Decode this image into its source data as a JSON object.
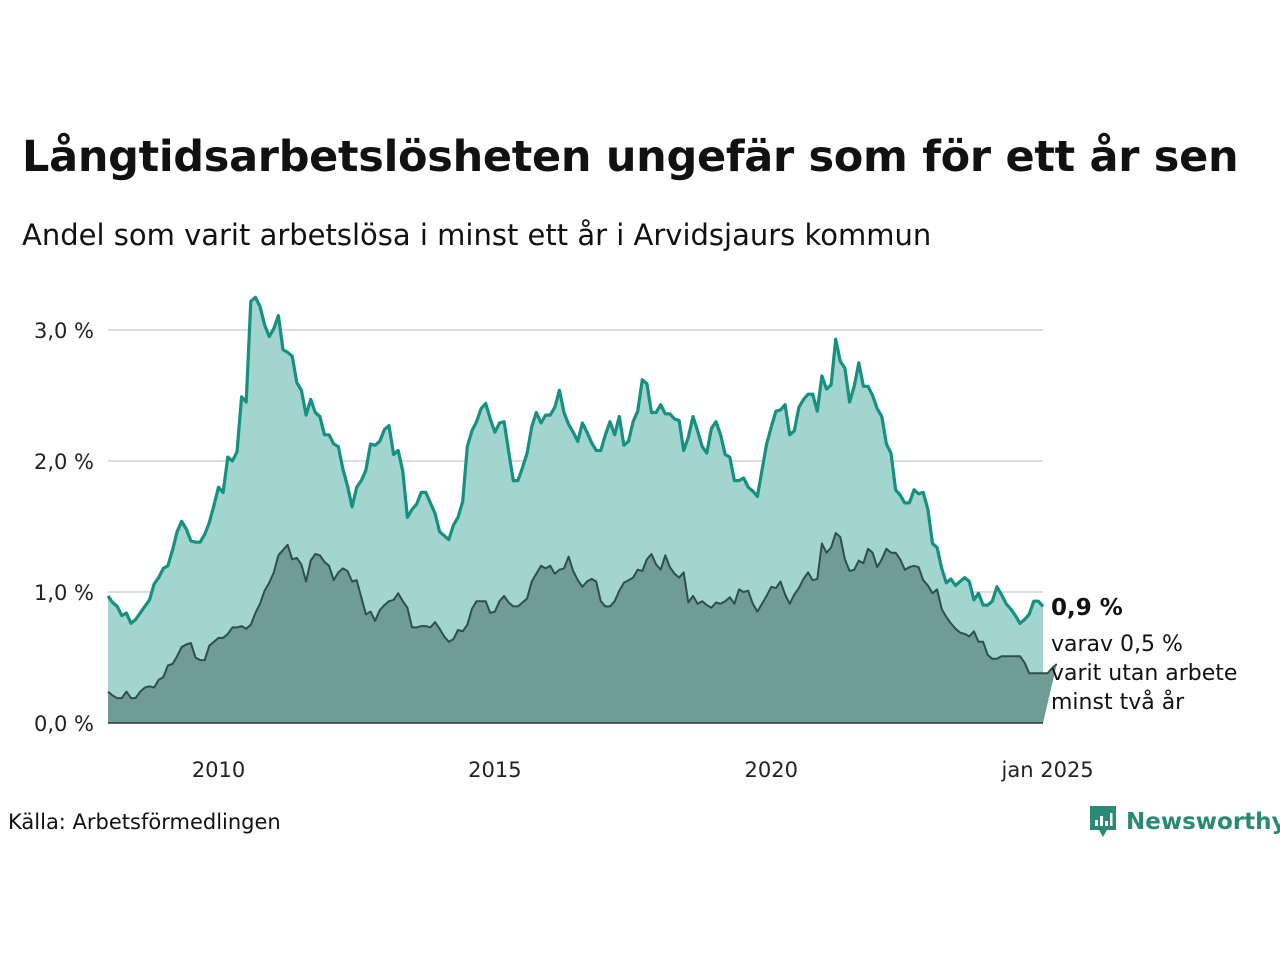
{
  "title": "Långtidsarbetslösheten ungefär som för ett år sen",
  "subtitle": "Andel som varit arbetslösa i minst ett år i Arvidsjaurs kommun",
  "source": "Källa: Arbetsförmedlingen",
  "brand": {
    "name": "Newsworthy",
    "icon": "newsworthy-logo-icon",
    "color": "#2a8a76"
  },
  "colors": {
    "long_line": "#16907f",
    "long_fill": "#a2d5cf",
    "vlong_line": "#2f4f49",
    "vlong_fill": "#6f9c96",
    "grid": "#dddddd"
  },
  "annotations": {
    "end_value": "0,9 %",
    "end_note_lines": [
      "varav 0,5 %",
      "varit utan arbete",
      "minst två år"
    ]
  },
  "chart_data": {
    "type": "area",
    "x_start": "2008-01",
    "x_frequency": "monthly",
    "x_ticks": [
      {
        "date": "2010-01",
        "label": "2010"
      },
      {
        "date": "2015-01",
        "label": "2015"
      },
      {
        "date": "2020-01",
        "label": "2020"
      },
      {
        "date": "2025-01",
        "label": "jan 2025"
      }
    ],
    "y_ticks": [
      {
        "value": 0,
        "label": "0,0 %"
      },
      {
        "value": 1,
        "label": "1,0 %"
      },
      {
        "value": 2,
        "label": "2,0 %"
      },
      {
        "value": 3,
        "label": "3,0 %"
      }
    ],
    "ylim": [
      0,
      3.3
    ],
    "grid": true,
    "series": [
      {
        "key": "long",
        "values": [
          0.97,
          0.92,
          0.89,
          0.82,
          0.84,
          0.76,
          0.79,
          0.84,
          0.89,
          0.94,
          1.06,
          1.11,
          1.18,
          1.2,
          1.32,
          1.46,
          1.54,
          1.48,
          1.39,
          1.38,
          1.38,
          1.44,
          1.53,
          1.66,
          1.8,
          1.76,
          2.03,
          2.0,
          2.07,
          2.49,
          2.45,
          3.22,
          3.25,
          3.18,
          3.04,
          2.95,
          3.01,
          3.11,
          2.85,
          2.83,
          2.8,
          2.6,
          2.54,
          2.35,
          2.47,
          2.37,
          2.34,
          2.2,
          2.2,
          2.13,
          2.11,
          1.94,
          1.81,
          1.65,
          1.8,
          1.85,
          1.93,
          2.13,
          2.12,
          2.15,
          2.24,
          2.27,
          2.05,
          2.08,
          1.92,
          1.57,
          1.63,
          1.67,
          1.76,
          1.76,
          1.68,
          1.6,
          1.46,
          1.43,
          1.4,
          1.51,
          1.57,
          1.69,
          2.11,
          2.23,
          2.3,
          2.4,
          2.44,
          2.32,
          2.22,
          2.29,
          2.3,
          2.07,
          1.85,
          1.85,
          1.95,
          2.06,
          2.26,
          2.37,
          2.29,
          2.35,
          2.35,
          2.41,
          2.54,
          2.37,
          2.28,
          2.22,
          2.15,
          2.29,
          2.22,
          2.14,
          2.08,
          2.08,
          2.2,
          2.3,
          2.2,
          2.34,
          2.12,
          2.15,
          2.3,
          2.38,
          2.62,
          2.59,
          2.37,
          2.37,
          2.43,
          2.36,
          2.36,
          2.32,
          2.31,
          2.08,
          2.18,
          2.34,
          2.23,
          2.11,
          2.06,
          2.25,
          2.3,
          2.2,
          2.05,
          2.03,
          1.85,
          1.85,
          1.87,
          1.8,
          1.77,
          1.73,
          1.93,
          2.13,
          2.26,
          2.38,
          2.39,
          2.43,
          2.2,
          2.23,
          2.41,
          2.47,
          2.51,
          2.51,
          2.38,
          2.65,
          2.55,
          2.58,
          2.93,
          2.76,
          2.71,
          2.45,
          2.57,
          2.75,
          2.57,
          2.57,
          2.5,
          2.4,
          2.34,
          2.13,
          2.06,
          1.78,
          1.74,
          1.68,
          1.68,
          1.78,
          1.75,
          1.76,
          1.63,
          1.37,
          1.34,
          1.18,
          1.07,
          1.1,
          1.05,
          1.08,
          1.11,
          1.08,
          0.94,
          0.99,
          0.9,
          0.9,
          0.93,
          1.04,
          0.98,
          0.91,
          0.87,
          0.82,
          0.76,
          0.79,
          0.83,
          0.93,
          0.93,
          0.89
        ]
      },
      {
        "key": "very_long",
        "values": [
          0.24,
          0.21,
          0.19,
          0.19,
          0.24,
          0.19,
          0.19,
          0.24,
          0.27,
          0.28,
          0.27,
          0.33,
          0.35,
          0.44,
          0.45,
          0.51,
          0.58,
          0.6,
          0.61,
          0.5,
          0.48,
          0.48,
          0.59,
          0.62,
          0.65,
          0.65,
          0.68,
          0.73,
          0.73,
          0.74,
          0.72,
          0.75,
          0.84,
          0.91,
          1.01,
          1.07,
          1.15,
          1.28,
          1.32,
          1.36,
          1.25,
          1.26,
          1.21,
          1.08,
          1.24,
          1.29,
          1.28,
          1.23,
          1.2,
          1.09,
          1.15,
          1.18,
          1.16,
          1.08,
          1.09,
          0.96,
          0.83,
          0.85,
          0.78,
          0.86,
          0.9,
          0.93,
          0.94,
          0.99,
          0.93,
          0.88,
          0.73,
          0.73,
          0.74,
          0.74,
          0.73,
          0.77,
          0.72,
          0.66,
          0.62,
          0.64,
          0.71,
          0.7,
          0.75,
          0.87,
          0.93,
          0.93,
          0.93,
          0.84,
          0.85,
          0.93,
          0.97,
          0.92,
          0.89,
          0.89,
          0.92,
          0.95,
          1.08,
          1.14,
          1.2,
          1.18,
          1.2,
          1.14,
          1.17,
          1.18,
          1.27,
          1.16,
          1.09,
          1.04,
          1.08,
          1.1,
          1.08,
          0.93,
          0.89,
          0.89,
          0.93,
          1.01,
          1.07,
          1.09,
          1.11,
          1.17,
          1.16,
          1.25,
          1.29,
          1.21,
          1.17,
          1.28,
          1.19,
          1.14,
          1.11,
          1.15,
          0.92,
          0.97,
          0.91,
          0.93,
          0.9,
          0.88,
          0.92,
          0.91,
          0.93,
          0.96,
          0.91,
          1.02,
          1.0,
          1.01,
          0.91,
          0.85,
          0.91,
          0.97,
          1.04,
          1.03,
          1.08,
          0.98,
          0.91,
          0.98,
          1.03,
          1.1,
          1.15,
          1.09,
          1.1,
          1.37,
          1.3,
          1.34,
          1.45,
          1.42,
          1.25,
          1.16,
          1.17,
          1.24,
          1.22,
          1.33,
          1.3,
          1.19,
          1.25,
          1.33,
          1.3,
          1.3,
          1.25,
          1.17,
          1.19,
          1.2,
          1.19,
          1.09,
          1.05,
          0.99,
          1.02,
          0.87,
          0.81,
          0.76,
          0.72,
          0.69,
          0.68,
          0.66,
          0.7,
          0.62,
          0.62,
          0.52,
          0.49,
          0.49,
          0.51,
          0.51,
          0.51,
          0.51,
          0.51,
          0.46,
          0.38,
          0.38,
          0.38,
          0.38,
          0.38,
          0.42,
          0.45
        ]
      }
    ]
  }
}
